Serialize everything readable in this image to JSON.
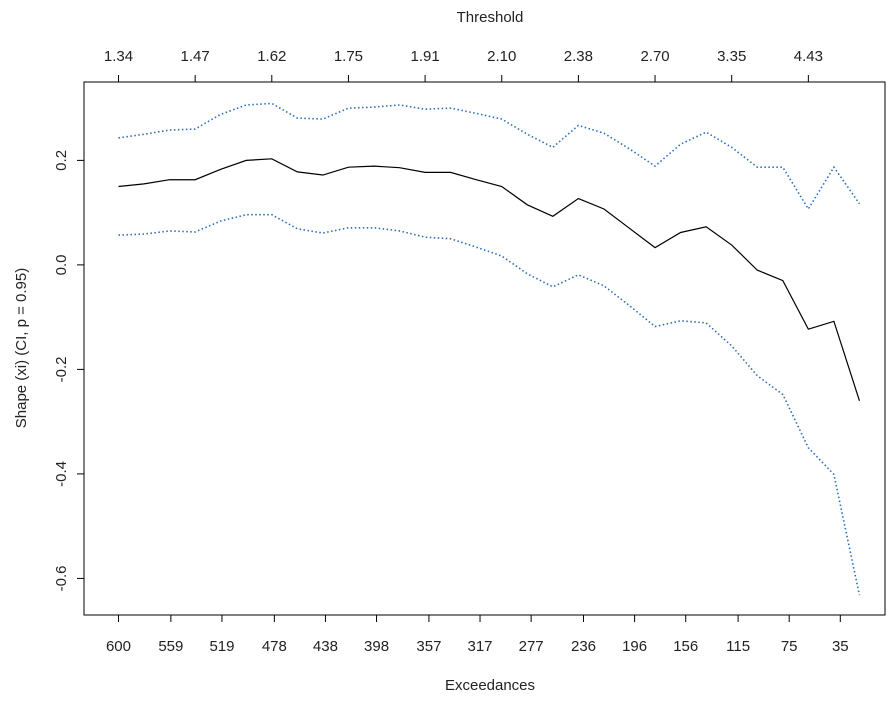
{
  "chart_data": {
    "type": "line",
    "xlabel": "Exceedances",
    "ylabel": "Shape (xi) (CI, p = 0.95)",
    "x2label": "Threshold",
    "x": [
      600,
      580,
      560,
      540,
      520,
      500,
      480,
      460,
      440,
      420,
      400,
      380,
      360,
      340,
      320,
      300,
      280,
      260,
      240,
      220,
      200,
      180,
      160,
      140,
      120,
      100,
      80,
      60,
      40,
      20
    ],
    "series": [
      {
        "color": "#000000",
        "dash": "solid",
        "values": [
          0.15,
          0.155,
          0.163,
          0.163,
          0.183,
          0.2,
          0.203,
          0.178,
          0.172,
          0.187,
          0.189,
          0.186,
          0.177,
          0.177,
          0.163,
          0.15,
          0.115,
          0.093,
          0.127,
          0.107,
          0.07,
          0.033,
          0.062,
          0.073,
          0.038,
          -0.01,
          -0.03,
          -0.123,
          -0.108,
          -0.26
        ]
      },
      {
        "color": "#2a6fb8",
        "dash": "dotted",
        "values": [
          0.243,
          0.25,
          0.258,
          0.26,
          0.288,
          0.306,
          0.309,
          0.281,
          0.279,
          0.3,
          0.302,
          0.306,
          0.298,
          0.3,
          0.29,
          0.279,
          0.25,
          0.225,
          0.267,
          0.252,
          0.222,
          0.189,
          0.231,
          0.254,
          0.225,
          0.187,
          0.187,
          0.107,
          0.187,
          0.117
        ]
      },
      {
        "color": "#2a6fb8",
        "dash": "dotted",
        "values": [
          0.057,
          0.059,
          0.065,
          0.063,
          0.084,
          0.096,
          0.096,
          0.069,
          0.061,
          0.071,
          0.071,
          0.065,
          0.053,
          0.05,
          0.034,
          0.017,
          -0.017,
          -0.042,
          -0.019,
          -0.04,
          -0.078,
          -0.118,
          -0.107,
          -0.111,
          -0.155,
          -0.212,
          -0.248,
          -0.35,
          -0.401,
          -0.632
        ]
      }
    ],
    "xlim": [
      627,
      0
    ],
    "ylim": [
      -0.67,
      0.35
    ],
    "xticks": [
      600,
      559,
      519,
      478,
      438,
      398,
      357,
      317,
      277,
      236,
      196,
      156,
      115,
      75,
      35
    ],
    "x2ticks": [
      {
        "value": 600,
        "label": "1.34"
      },
      {
        "value": 540,
        "label": "1.47"
      },
      {
        "value": 480,
        "label": "1.62"
      },
      {
        "value": 420,
        "label": "1.75"
      },
      {
        "value": 360,
        "label": "1.91"
      },
      {
        "value": 300,
        "label": "2.10"
      },
      {
        "value": 240,
        "label": "2.38"
      },
      {
        "value": 180,
        "label": "2.70"
      },
      {
        "value": 120,
        "label": "3.35"
      },
      {
        "value": 60,
        "label": "4.43"
      }
    ],
    "yticks": [
      -0.6,
      -0.4,
      -0.2,
      {
        "value": 0,
        "label": "0.0"
      },
      0.2
    ]
  }
}
